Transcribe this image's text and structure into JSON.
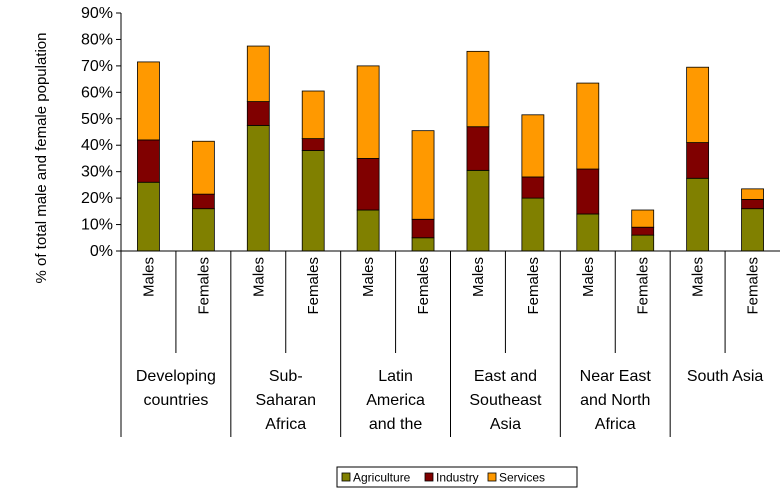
{
  "chart_data": {
    "type": "bar",
    "stacked": true,
    "ylabel": "% of total male and female population",
    "xlabel": "",
    "ylim": [
      0,
      90
    ],
    "yticks": [
      "0%",
      "10%",
      "20%",
      "30%",
      "40%",
      "50%",
      "60%",
      "70%",
      "80%",
      "90%"
    ],
    "groups": [
      {
        "label_lines": [
          "Developing",
          "countries"
        ]
      },
      {
        "label_lines": [
          "Sub-",
          "Saharan",
          "Africa"
        ]
      },
      {
        "label_lines": [
          "Latin",
          "America",
          "and the"
        ]
      },
      {
        "label_lines": [
          "East and",
          "Southeast",
          "Asia"
        ]
      },
      {
        "label_lines": [
          "Near East",
          "and North",
          "Africa"
        ]
      },
      {
        "label_lines": [
          "South Asia"
        ]
      }
    ],
    "categories": [
      "Males",
      "Females",
      "Males",
      "Females",
      "Males",
      "Females",
      "Males",
      "Females",
      "Males",
      "Females",
      "Males",
      "Females"
    ],
    "series": [
      {
        "name": "Agriculture",
        "color": "#808000",
        "values": [
          26,
          16,
          47.5,
          38,
          15.5,
          5,
          30.5,
          20,
          14,
          6,
          27.5,
          16
        ]
      },
      {
        "name": "Industry",
        "color": "#800000",
        "values": [
          16,
          5.5,
          9,
          4.5,
          19.5,
          7,
          16.5,
          8,
          17,
          3,
          13.5,
          3.5
        ]
      },
      {
        "name": "Services",
        "color": "#FF9900",
        "values": [
          29.5,
          20,
          21,
          18,
          35,
          33.5,
          28.5,
          23.5,
          32.5,
          6.5,
          28.5,
          4
        ]
      }
    ],
    "grid": false,
    "legend_position": "bottom"
  }
}
